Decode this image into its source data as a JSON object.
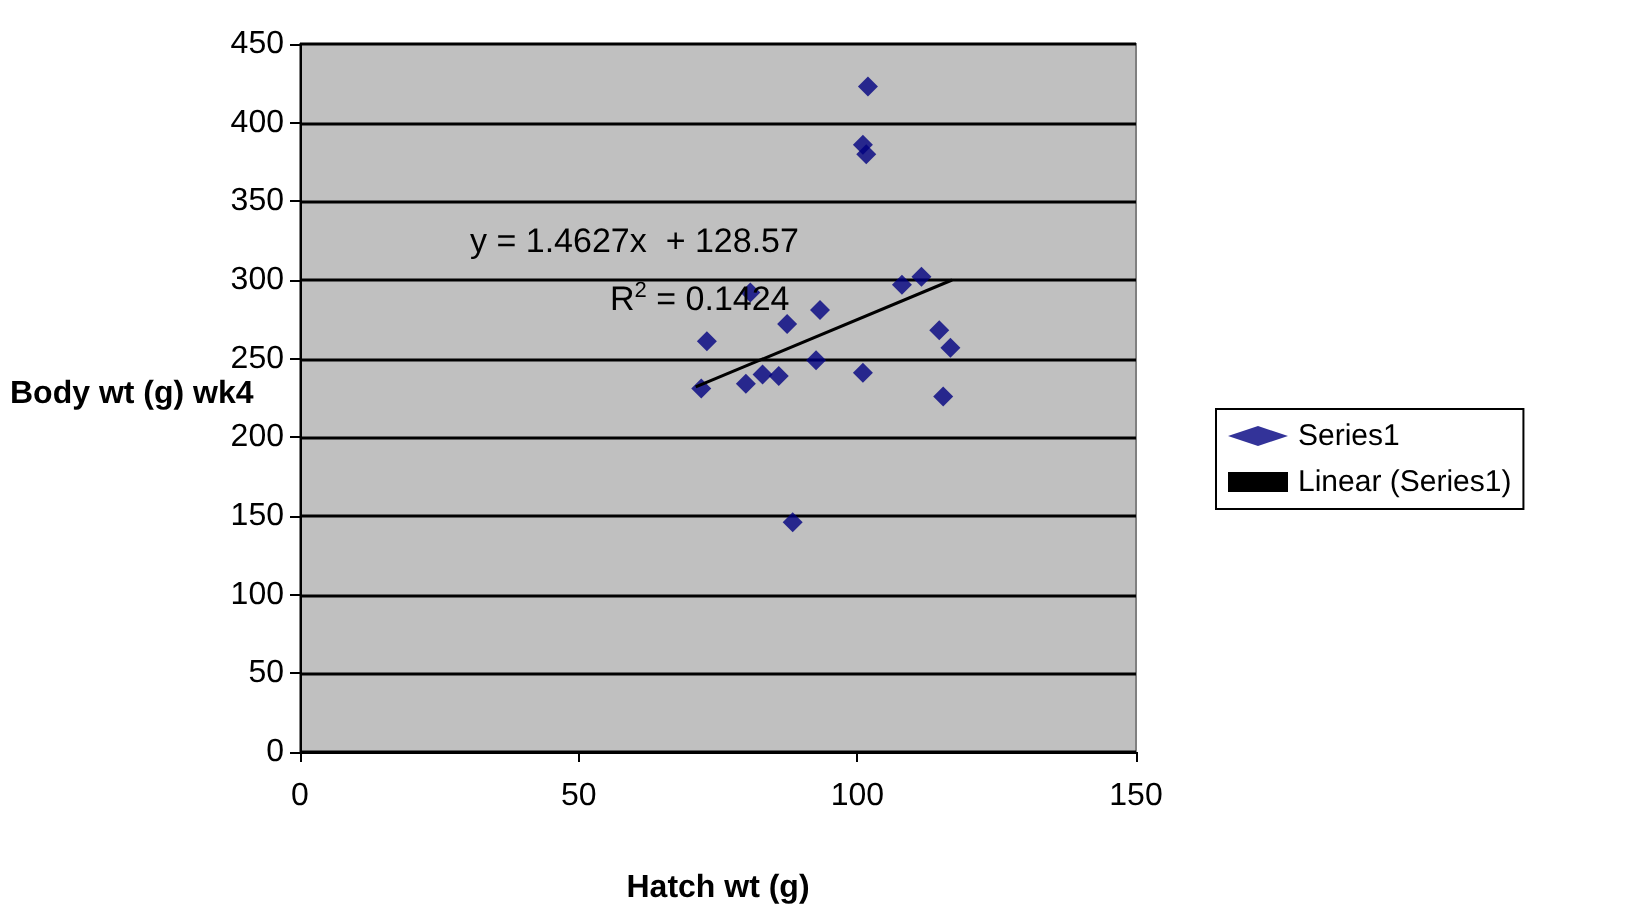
{
  "chart_data": {
    "type": "scatter",
    "xlabel": "Hatch wt (g)",
    "ylabel": "Body wt (g) wk4",
    "xlim": [
      0,
      150
    ],
    "xticks": [
      0,
      50,
      100,
      150
    ],
    "ylim": [
      0,
      450
    ],
    "yticks": [
      0,
      50,
      100,
      150,
      200,
      250,
      300,
      350,
      400,
      450
    ],
    "grid": "y",
    "legend": "right",
    "marker": "diamond",
    "annotations": [
      "y = 1.4627x  + 128.57",
      "R$^{2}$ = 0.1424"
    ],
    "series": [
      {
        "name": "Series1",
        "color": "#000080",
        "x": [
          72,
          73,
          80,
          80.8,
          83,
          85.9,
          87.4,
          88.4,
          92.6,
          93.3,
          101,
          101,
          101.6,
          101.9,
          108,
          111.5,
          114.7,
          115.4,
          116.7
        ],
        "values": [
          231,
          261,
          234,
          292,
          240,
          239,
          272,
          146,
          249,
          281,
          241,
          386,
          380,
          423,
          297,
          302,
          268,
          226,
          257
        ]
      },
      {
        "name": "Linear (Series1)",
        "type": "line",
        "color": "#000000",
        "line_style": "solid",
        "marker": "none",
        "x": [
          71,
          117
        ],
        "values": [
          232,
          300
        ]
      }
    ]
  }
}
